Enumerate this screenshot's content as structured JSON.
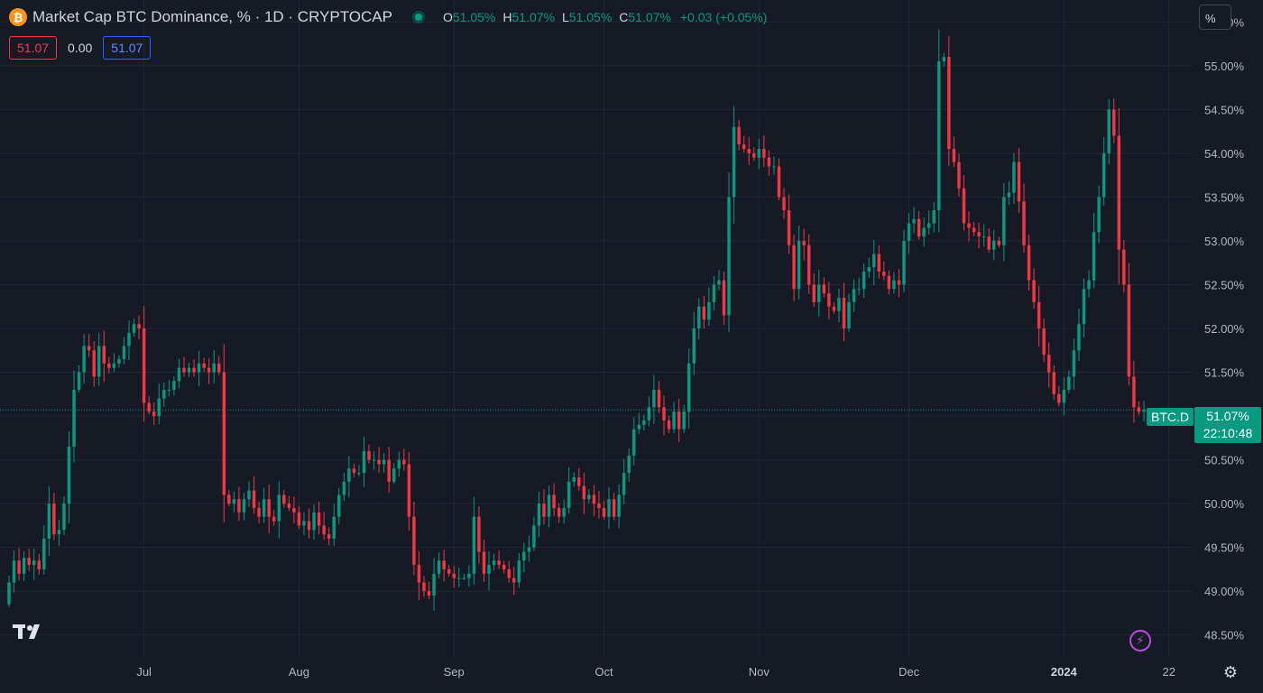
{
  "header": {
    "icon": "bitcoin-icon",
    "title": "Market Cap BTC Dominance, % · 1D · CRYPTOCAP",
    "ohlc": {
      "o_label": "O",
      "o_value": "51.05%",
      "h_label": "H",
      "h_value": "51.07%",
      "l_label": "L",
      "l_value": "51.05%",
      "c_label": "C",
      "c_value": "51.07%",
      "change": "+0.03 (+0.05%)"
    }
  },
  "value_row": {
    "bid": "51.07",
    "spread": "0.00",
    "ask": "51.07"
  },
  "scale_button": "%",
  "last_price": {
    "symbol": "BTC.D",
    "value": "51.07%",
    "countdown": "22:10:48"
  },
  "colors": {
    "up": "#089981",
    "down": "#f23645",
    "background": "#161a25",
    "grid": "#232733"
  },
  "chart_data": {
    "type": "candlestick",
    "title": "Market Cap BTC Dominance, % · 1D · CRYPTOCAP",
    "y_unit": "%",
    "ylim": [
      48.25,
      55.75
    ],
    "y_ticks": [
      "48.50%",
      "49.00%",
      "49.50%",
      "50.00%",
      "50.50%",
      "51.00%",
      "51.50%",
      "52.00%",
      "52.50%",
      "53.00%",
      "53.50%",
      "54.00%",
      "54.50%",
      "55.00%",
      "55.50%"
    ],
    "y_tick_values": [
      48.5,
      49.0,
      49.5,
      50.0,
      50.5,
      51.0,
      51.5,
      52.0,
      52.5,
      53.0,
      53.5,
      54.0,
      54.5,
      55.0,
      55.5
    ],
    "x_ticks": [
      {
        "label": "Jul",
        "index": 27,
        "bold": false
      },
      {
        "label": "Aug",
        "index": 58,
        "bold": false
      },
      {
        "label": "Sep",
        "index": 89,
        "bold": false
      },
      {
        "label": "Oct",
        "index": 119,
        "bold": false
      },
      {
        "label": "Nov",
        "index": 150,
        "bold": false
      },
      {
        "label": "Dec",
        "index": 180,
        "bold": false
      },
      {
        "label": "2024",
        "index": 211,
        "bold": true
      },
      {
        "label": "22",
        "index": 232,
        "bold": false
      }
    ],
    "grid": true,
    "close": [
      49.1,
      49.35,
      49.2,
      49.38,
      49.3,
      49.35,
      49.25,
      49.6,
      50.0,
      49.65,
      49.7,
      50.0,
      50.65,
      51.3,
      51.5,
      51.8,
      51.75,
      51.45,
      51.8,
      51.6,
      51.55,
      51.6,
      51.65,
      51.8,
      51.95,
      52.05,
      52.0,
      51.15,
      51.05,
      51.0,
      51.2,
      51.3,
      51.3,
      51.4,
      51.55,
      51.5,
      51.55,
      51.5,
      51.6,
      51.55,
      51.5,
      51.6,
      51.5,
      50.1,
      50.0,
      50.05,
      49.9,
      50.05,
      50.15,
      49.95,
      49.85,
      50.05,
      49.85,
      49.8,
      50.1,
      50.0,
      49.95,
      49.9,
      49.75,
      49.8,
      49.7,
      49.9,
      49.75,
      49.65,
      49.6,
      49.85,
      50.1,
      50.25,
      50.4,
      50.35,
      50.35,
      50.6,
      50.5,
      50.5,
      50.45,
      50.5,
      50.25,
      50.4,
      50.5,
      50.45,
      49.85,
      49.3,
      49.1,
      49.0,
      48.95,
      49.2,
      49.35,
      49.25,
      49.2,
      49.15,
      49.15,
      49.15,
      49.2,
      49.85,
      49.45,
      49.2,
      49.3,
      49.35,
      49.3,
      49.25,
      49.15,
      49.1,
      49.35,
      49.45,
      49.5,
      49.75,
      50.0,
      49.85,
      50.1,
      49.95,
      49.85,
      49.95,
      50.25,
      50.3,
      50.2,
      50.05,
      50.1,
      50.0,
      49.95,
      49.85,
      50.05,
      49.85,
      50.1,
      50.35,
      50.55,
      50.85,
      50.9,
      50.95,
      51.1,
      51.3,
      51.1,
      50.95,
      50.85,
      51.05,
      50.85,
      51.05,
      51.6,
      52.0,
      52.25,
      52.1,
      52.3,
      52.5,
      52.55,
      52.15,
      53.5,
      54.3,
      54.1,
      54.05,
      54.0,
      53.95,
      54.05,
      53.95,
      53.85,
      53.85,
      53.5,
      53.35,
      52.95,
      52.45,
      53.0,
      52.95,
      52.5,
      52.3,
      52.5,
      52.4,
      52.25,
      52.2,
      52.35,
      52.0,
      52.3,
      52.45,
      52.45,
      52.65,
      52.7,
      52.85,
      52.65,
      52.6,
      52.45,
      52.55,
      52.5,
      53.0,
      53.2,
      53.25,
      53.05,
      53.15,
      53.2,
      53.35,
      55.05,
      55.1,
      54.05,
      53.9,
      53.6,
      53.2,
      53.15,
      53.1,
      53.05,
      53.05,
      52.9,
      53.0,
      52.95,
      53.5,
      53.55,
      53.9,
      53.45,
      52.95,
      52.55,
      52.3,
      52.0,
      51.7,
      51.5,
      51.25,
      51.15,
      51.3,
      51.45,
      51.75,
      52.05,
      52.45,
      52.55,
      53.1,
      53.5,
      54.0,
      54.5,
      54.2,
      52.9,
      52.5,
      51.45,
      51.1,
      51.05,
      51.07
    ],
    "volatility_note": ""
  }
}
